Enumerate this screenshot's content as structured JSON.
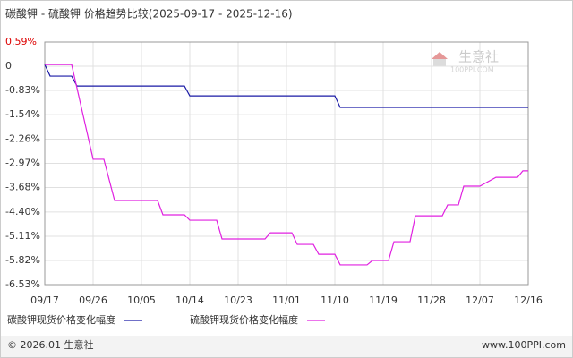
{
  "chart_data": {
    "type": "line",
    "title": "碳酸钾 - 硫酸钾 价格趋势比较(2025-09-17 - 2025-12-16)",
    "xlim": [
      "09/17",
      "12/16"
    ],
    "xticks": [
      "09/17",
      "09/26",
      "10/05",
      "10/14",
      "10/23",
      "11/01",
      "11/10",
      "11/19",
      "11/28",
      "12/07",
      "12/16"
    ],
    "ylim": [
      -6.53,
      0.59
    ],
    "yticks": [
      {
        "value": 0.59,
        "label": "0.59%"
      },
      {
        "value": -0.12,
        "label": "0"
      },
      {
        "value": -0.83,
        "label": "-0.83%"
      },
      {
        "value": -1.54,
        "label": "-1.54%"
      },
      {
        "value": -2.26,
        "label": "-2.26%"
      },
      {
        "value": -2.97,
        "label": "-2.97%"
      },
      {
        "value": -3.68,
        "label": "-3.68%"
      },
      {
        "value": -4.4,
        "label": "-4.40%"
      },
      {
        "value": -5.11,
        "label": "-5.11%"
      },
      {
        "value": -5.82,
        "label": "-5.82%"
      },
      {
        "value": -6.53,
        "label": "-6.53%"
      }
    ],
    "grid": true,
    "series": [
      {
        "name": "碳酸钾现货价格变化幅度",
        "color": "#1a1aa6",
        "x": [
          "09/17",
          "09/18",
          "09/22",
          "09/23",
          "10/13",
          "10/14",
          "11/10",
          "11/11",
          "12/16"
        ],
        "values": [
          -0.07,
          -0.41,
          -0.41,
          -0.7,
          -0.7,
          -0.99,
          -0.99,
          -1.33,
          -1.33
        ]
      },
      {
        "name": "硫酸钾现货价格变化幅度",
        "color": "#e020e0",
        "x": [
          "09/17",
          "09/22",
          "09/26",
          "09/28",
          "09/30",
          "10/08",
          "10/09",
          "10/13",
          "10/14",
          "10/19",
          "10/20",
          "10/28",
          "10/29",
          "11/02",
          "11/03",
          "11/06",
          "11/07",
          "11/10",
          "11/11",
          "11/16",
          "11/17",
          "11/20",
          "11/21",
          "11/24",
          "11/25",
          "11/30",
          "12/01",
          "12/03",
          "12/04",
          "12/07",
          "12/10",
          "12/14",
          "12/15",
          "12/16"
        ],
        "values": [
          -0.07,
          -0.07,
          -2.85,
          -2.85,
          -4.06,
          -4.06,
          -4.48,
          -4.48,
          -4.64,
          -4.64,
          -5.19,
          -5.19,
          -5.01,
          -5.01,
          -5.35,
          -5.35,
          -5.64,
          -5.64,
          -5.95,
          -5.95,
          -5.82,
          -5.82,
          -5.27,
          -5.27,
          -4.51,
          -4.51,
          -4.19,
          -4.19,
          -3.64,
          -3.64,
          -3.38,
          -3.38,
          -3.19,
          -3.19
        ]
      }
    ]
  },
  "watermark": {
    "name": "生意社",
    "site": "100PPI.COM"
  },
  "footer": {
    "copyright": "© 2026.01 生意社",
    "site": "www.100PPI.com"
  }
}
